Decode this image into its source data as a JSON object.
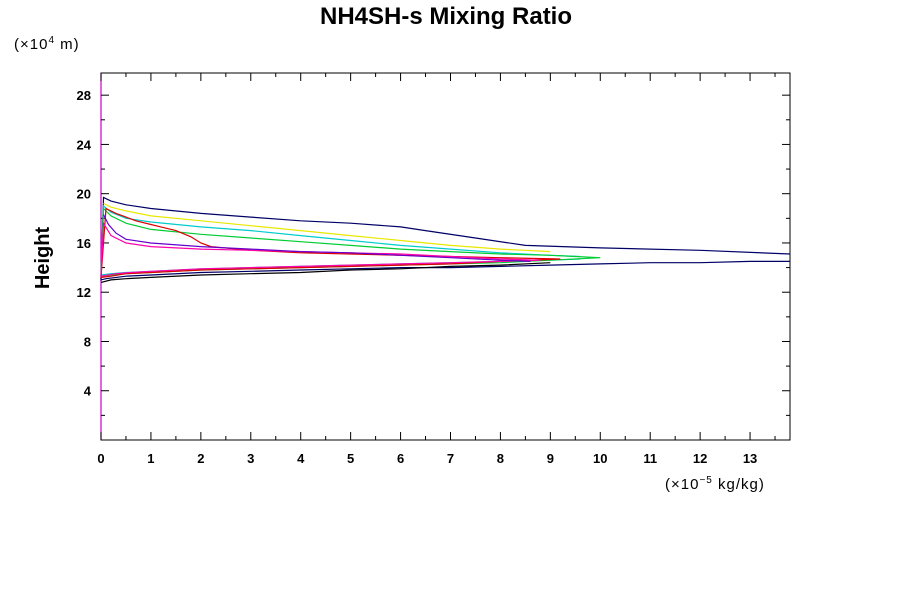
{
  "chart_data": {
    "type": "line",
    "title": "NH4SH-s Mixing Ratio",
    "ylabel": "Height",
    "y_unit": {
      "prefix": "(×10",
      "exp": "4",
      "suffix": " m)"
    },
    "x_unit": {
      "prefix": "(×10",
      "exp": "−5",
      "suffix": " kg/kg)"
    },
    "xlim": [
      0,
      13.8
    ],
    "ylim": [
      0,
      29.8
    ],
    "x_major_ticks": [
      0,
      1,
      2,
      3,
      4,
      5,
      6,
      7,
      8,
      9,
      10,
      11,
      12,
      13
    ],
    "y_major_ticks": [
      4,
      8,
      12,
      16,
      20,
      24,
      28
    ],
    "grid": false,
    "series": [
      {
        "name": "navy-outer",
        "color": "#000066",
        "x": [
          13.8,
          12,
          10,
          8.5,
          7.5,
          6.5,
          6,
          5,
          4,
          3,
          2,
          1,
          0.5,
          0.2,
          0.05,
          0,
          0.1,
          0.5,
          1,
          2,
          3,
          4,
          5,
          6,
          7,
          8,
          9,
          10,
          11,
          12,
          13,
          13.8
        ],
        "y": [
          15.1,
          15.4,
          15.6,
          15.8,
          16.4,
          17.0,
          17.3,
          17.6,
          17.8,
          18.1,
          18.4,
          18.8,
          19.1,
          19.4,
          19.7,
          13.0,
          13.1,
          13.3,
          13.4,
          13.6,
          13.7,
          13.8,
          13.9,
          14.0,
          14.0,
          14.1,
          14.2,
          14.3,
          14.4,
          14.4,
          14.5,
          14.5
        ]
      },
      {
        "name": "yellow",
        "color": "#e8e800",
        "x": [
          9.0,
          8.5,
          8,
          7,
          6,
          5,
          4,
          3,
          2,
          1,
          0.5,
          0.2,
          0.05
        ],
        "y": [
          15.3,
          15.4,
          15.5,
          15.8,
          16.2,
          16.6,
          17.0,
          17.4,
          17.8,
          18.2,
          18.6,
          18.9,
          19.2
        ]
      },
      {
        "name": "cyan",
        "color": "#00cccc",
        "x": [
          9.6,
          9,
          8,
          7,
          6,
          5,
          4,
          3,
          2,
          1,
          0.5,
          0.2,
          0.05,
          0,
          0.2,
          0.5,
          1,
          2,
          3,
          4,
          5,
          6,
          7,
          8,
          9,
          9.6
        ],
        "y": [
          14.9,
          15.0,
          15.2,
          15.5,
          15.8,
          16.2,
          16.6,
          17.0,
          17.3,
          17.7,
          18.0,
          18.5,
          19.0,
          13.4,
          13.5,
          13.6,
          13.7,
          13.9,
          14.0,
          14.1,
          14.2,
          14.3,
          14.4,
          14.5,
          14.6,
          14.7
        ]
      },
      {
        "name": "green",
        "color": "#00cc33",
        "x": [
          10.0,
          9.5,
          9,
          8,
          7,
          6,
          5,
          4,
          3,
          2,
          1,
          0.5,
          0.2,
          0.05,
          0,
          0.2,
          0.5,
          1,
          2,
          3,
          4,
          5,
          6,
          7,
          8,
          9,
          10.0
        ],
        "y": [
          14.8,
          14.9,
          15.0,
          15.1,
          15.3,
          15.5,
          15.8,
          16.1,
          16.4,
          16.7,
          17.1,
          17.6,
          18.2,
          18.8,
          13.3,
          13.4,
          13.5,
          13.6,
          13.8,
          13.9,
          14.0,
          14.1,
          14.2,
          14.3,
          14.4,
          14.6,
          14.8
        ]
      },
      {
        "name": "red",
        "color": "#dd0000",
        "x": [
          9.2,
          8,
          7,
          6,
          5,
          4,
          3,
          2.2,
          2,
          1.8,
          1.5,
          1.2,
          1.0,
          0.7,
          0.5,
          0.3,
          0.1,
          0,
          0.2,
          0.5,
          1,
          2,
          3,
          4,
          5,
          6,
          7,
          8,
          9.2
        ],
        "y": [
          14.7,
          14.8,
          14.9,
          15.0,
          15.1,
          15.2,
          15.4,
          15.7,
          16.0,
          16.5,
          17.0,
          17.3,
          17.5,
          17.8,
          18.1,
          18.4,
          18.8,
          13.2,
          13.3,
          13.5,
          13.6,
          13.8,
          13.9,
          14.0,
          14.1,
          14.2,
          14.3,
          14.5,
          14.7
        ]
      },
      {
        "name": "magenta",
        "color": "#ff00aa",
        "x": [
          8.8,
          8,
          7,
          6,
          5,
          4,
          3,
          2,
          1,
          0.5,
          0.2,
          0.05,
          0,
          0.3,
          0.6,
          1,
          2,
          3,
          4,
          5,
          6,
          7,
          8,
          8.8
        ],
        "y": [
          14.6,
          14.7,
          14.9,
          15.1,
          15.2,
          15.3,
          15.4,
          15.5,
          15.7,
          16.0,
          16.6,
          17.6,
          13.3,
          13.5,
          13.6,
          13.7,
          13.9,
          14.0,
          14.1,
          14.2,
          14.3,
          14.4,
          14.5,
          14.6
        ]
      },
      {
        "name": "purple",
        "color": "#6600cc",
        "x": [
          8.6,
          8,
          7,
          6,
          5,
          4,
          3,
          2,
          1,
          0.5,
          0.3,
          0.15,
          0.05
        ],
        "y": [
          14.5,
          14.6,
          14.8,
          15.0,
          15.2,
          15.3,
          15.5,
          15.7,
          16.0,
          16.3,
          16.8,
          17.5,
          18.3
        ]
      },
      {
        "name": "black",
        "color": "#000000",
        "x": [
          0,
          0.2,
          0.5,
          1,
          2,
          3,
          4,
          5,
          6,
          7,
          8,
          9
        ],
        "y": [
          12.8,
          13.0,
          13.1,
          13.2,
          13.4,
          13.5,
          13.6,
          13.8,
          13.9,
          14.1,
          14.2,
          14.4
        ]
      }
    ]
  }
}
